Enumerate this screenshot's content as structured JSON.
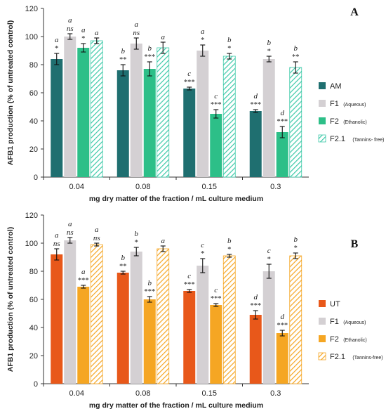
{
  "chart_data": [
    {
      "type": "bar",
      "panel_label": "A",
      "ylabel": "AFB1 production (% of untreated control)",
      "xlabel": "mg dry matter of the fraction / mL culture medium",
      "ylim": [
        0,
        120
      ],
      "yticks": [
        0,
        20,
        40,
        60,
        80,
        100,
        120
      ],
      "categories": [
        "0.04",
        "0.08",
        "0.15",
        "0.3"
      ],
      "legend_position": "right",
      "series": [
        {
          "name": "AM",
          "sub": "",
          "color": "#1f6f70",
          "hatch": false,
          "values": [
            84,
            76,
            63,
            47
          ],
          "errors": [
            4,
            4,
            1,
            1
          ],
          "letters": [
            "a",
            "b",
            "c",
            "d"
          ],
          "sig": [
            "*",
            "**",
            "***",
            "***"
          ]
        },
        {
          "name": "F1",
          "sub": "(Aqueous)",
          "color": "#d4d0d3",
          "hatch": false,
          "values": [
            100,
            95,
            90,
            84
          ],
          "errors": [
            2,
            4,
            4,
            2
          ],
          "letters": [
            "a",
            "a",
            "a",
            "b"
          ],
          "sig": [
            "ns",
            "ns",
            "*",
            "*"
          ]
        },
        {
          "name": "F2",
          "sub": "(Ethanolic)",
          "color": "#2dbf88",
          "hatch": false,
          "values": [
            92,
            77,
            45,
            32
          ],
          "errors": [
            3,
            5,
            3,
            4
          ],
          "letters": [
            "a",
            "b",
            "c",
            "d"
          ],
          "sig": [
            "*",
            "***",
            "***",
            "***"
          ]
        },
        {
          "name": "F2.1",
          "sub": "(Tannins- free)",
          "color": "#3cc9a8",
          "hatch": true,
          "values": [
            97,
            92,
            86,
            78
          ],
          "errors": [
            2,
            4,
            2,
            4
          ],
          "letters": [
            "a",
            "a",
            "b",
            "b"
          ],
          "sig": [
            "",
            "",
            "*",
            "**"
          ]
        }
      ]
    },
    {
      "type": "bar",
      "panel_label": "B",
      "ylabel": "AFB1 production (% of untreated control)",
      "xlabel": "mg dry matter of the fraction / mL culture medium",
      "ylim": [
        0,
        120
      ],
      "yticks": [
        0,
        20,
        40,
        60,
        80,
        100,
        120
      ],
      "categories": [
        "0.04",
        "0.08",
        "0.15",
        "0.3"
      ],
      "legend_position": "right",
      "series": [
        {
          "name": "UT",
          "sub": "",
          "color": "#e8581a",
          "hatch": false,
          "values": [
            92,
            79,
            66,
            49
          ],
          "errors": [
            4,
            1,
            1,
            3
          ],
          "letters": [
            "a",
            "b",
            "c",
            "d"
          ],
          "sig": [
            "ns",
            "**",
            "***",
            "***"
          ]
        },
        {
          "name": "F1",
          "sub": "(Aqueous)",
          "color": "#d4d0d3",
          "hatch": false,
          "values": [
            102,
            94,
            84,
            80
          ],
          "errors": [
            2,
            3,
            5,
            5
          ],
          "letters": [
            "a",
            "b",
            "c",
            "c"
          ],
          "sig": [
            "ns",
            "*",
            "*",
            "*"
          ]
        },
        {
          "name": "F2",
          "sub": "(Ethanolic)",
          "color": "#f5a623",
          "hatch": false,
          "values": [
            69,
            60,
            56,
            36
          ],
          "errors": [
            1,
            2,
            1,
            2
          ],
          "letters": [
            "a",
            "b",
            "c",
            "d"
          ],
          "sig": [
            "***",
            "***",
            "***",
            "***"
          ]
        },
        {
          "name": "F2.1",
          "sub": "(Tannins-free)",
          "color": "#f5a623",
          "hatch": true,
          "values": [
            99,
            96,
            91,
            91
          ],
          "errors": [
            1,
            2,
            1,
            2
          ],
          "letters": [
            "a",
            "a",
            "b",
            "b"
          ],
          "sig": [
            "ns",
            "",
            "*",
            "*"
          ]
        }
      ]
    }
  ]
}
